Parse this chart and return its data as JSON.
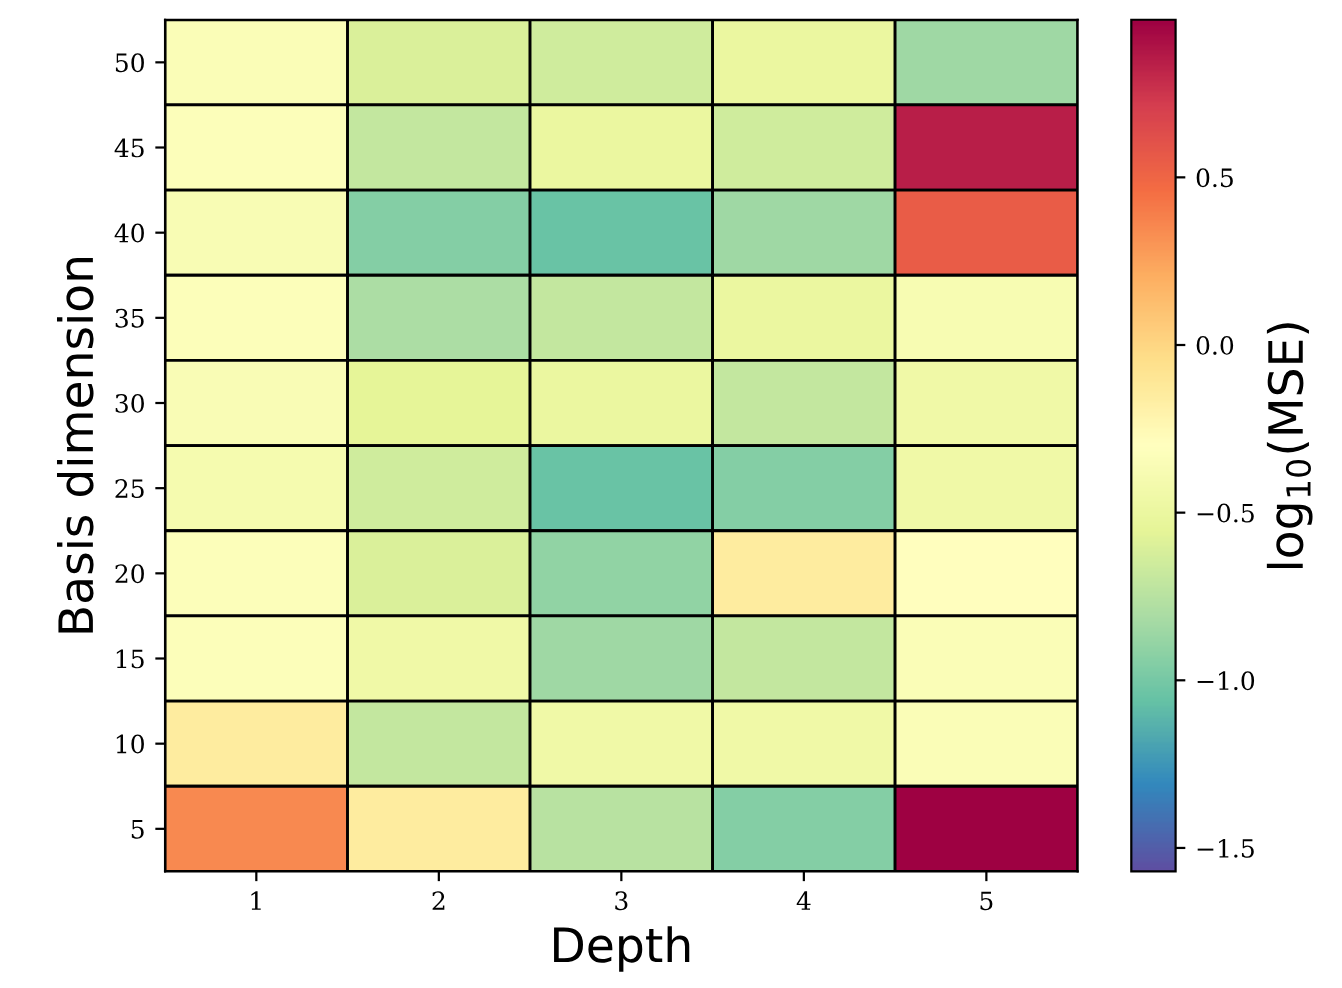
{
  "chart_data": {
    "type": "heatmap",
    "xlabel": "Depth",
    "ylabel": "Basis dimension",
    "clabel": "log$_{10}$(MSE)",
    "categories": [
      "1",
      "2",
      "3",
      "4",
      "5"
    ],
    "y_categories": [
      "50",
      "45",
      "40",
      "35",
      "30",
      "25",
      "20",
      "15",
      "10",
      "5"
    ],
    "cells": [
      [
        -0.35,
        -0.6,
        -0.65,
        -0.5,
        -0.85
      ],
      [
        -0.33,
        -0.7,
        -0.5,
        -0.65,
        0.85
      ],
      [
        -0.37,
        -0.95,
        -1.05,
        -0.85,
        0.55
      ],
      [
        -0.33,
        -0.8,
        -0.7,
        -0.5,
        -0.38
      ],
      [
        -0.36,
        -0.55,
        -0.5,
        -0.7,
        -0.45
      ],
      [
        -0.4,
        -0.65,
        -1.05,
        -0.95,
        -0.45
      ],
      [
        -0.33,
        -0.6,
        -0.9,
        -0.15,
        -0.3
      ],
      [
        -0.33,
        -0.45,
        -0.85,
        -0.7,
        -0.35
      ],
      [
        -0.15,
        -0.7,
        -0.45,
        -0.45,
        -0.35
      ],
      [
        0.35,
        -0.15,
        -0.75,
        -0.95,
        0.97
      ]
    ],
    "clim": [
      -1.57,
      0.97
    ],
    "cticks": [
      -1.5,
      {
        "value": -1,
        "label": "−1.0"
      },
      -0.5,
      {
        "value": 0,
        "label": "0.0"
      },
      0.5
    ]
  }
}
